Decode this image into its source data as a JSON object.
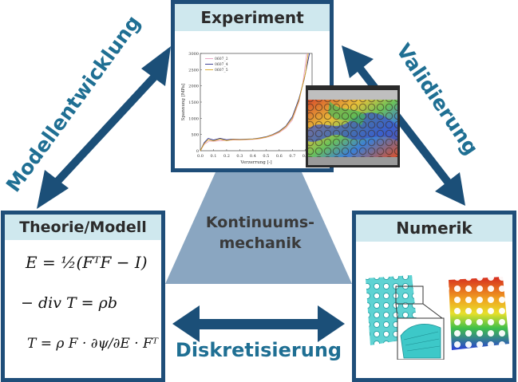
{
  "panels": {
    "experiment": {
      "title": "Experiment"
    },
    "theory": {
      "title": "Theorie/Modell"
    },
    "numerics": {
      "title": "Numerik"
    }
  },
  "center": {
    "line1": "Kontinuums-",
    "line2": "mechanik"
  },
  "arrows": {
    "left": "Modellentwicklung",
    "right": "Validierung",
    "bottom": "Diskretisierung"
  },
  "equations": {
    "eq1": "E = ½(FᵀF − I)",
    "eq2": "− div T = ρb",
    "eq3": "T = ρ F · ∂ψ/∂E · Fᵀ"
  },
  "colors": {
    "dark_blue": "#1f4e79",
    "arrow_blue": "#1b4f78",
    "header_bg": "#cfe8ee",
    "trapezoid": "#8aa6c1",
    "label_blue": "#1f6f93"
  },
  "chart_data": {
    "type": "line",
    "xlabel": "Verzerrung [-]",
    "ylabel": "Spannung [MPa]",
    "x_ticks": [
      "0.0",
      "0.1",
      "0.2",
      "0.3",
      "0.4",
      "0.5",
      "0.6",
      "0.7",
      "0.8"
    ],
    "y_ticks": [
      "0",
      "500",
      "1000",
      "1500",
      "2000",
      "2500",
      "3000"
    ],
    "xlim": [
      0,
      0.85
    ],
    "ylim": [
      0,
      3000
    ],
    "series": [
      {
        "name": "0607_2",
        "color": "#e8a0c0",
        "x": [
          0,
          0.03,
          0.07,
          0.1,
          0.15,
          0.2,
          0.25,
          0.3,
          0.35,
          0.4,
          0.45,
          0.5,
          0.55,
          0.6,
          0.65,
          0.7,
          0.75,
          0.78,
          0.8,
          0.81
        ],
        "y": [
          0,
          200,
          300,
          290,
          310,
          320,
          330,
          330,
          340,
          350,
          370,
          410,
          470,
          560,
          700,
          950,
          1500,
          2100,
          2700,
          3000
        ]
      },
      {
        "name": "0607_4",
        "color": "#2b2f8a",
        "x": [
          0,
          0.03,
          0.06,
          0.1,
          0.15,
          0.2,
          0.25,
          0.3,
          0.35,
          0.4,
          0.45,
          0.5,
          0.55,
          0.6,
          0.65,
          0.7,
          0.75,
          0.79,
          0.82,
          0.83
        ],
        "y": [
          0,
          250,
          380,
          330,
          380,
          340,
          360,
          350,
          360,
          365,
          390,
          430,
          500,
          600,
          760,
          1050,
          1600,
          2200,
          2800,
          3000
        ]
      },
      {
        "name": "0607_5",
        "color": "#d9a520",
        "x": [
          0,
          0.03,
          0.06,
          0.1,
          0.15,
          0.2,
          0.25,
          0.3,
          0.35,
          0.4,
          0.45,
          0.5,
          0.55,
          0.6,
          0.65,
          0.7,
          0.75,
          0.8,
          0.82
        ],
        "y": [
          0,
          220,
          340,
          300,
          360,
          310,
          350,
          340,
          350,
          360,
          380,
          420,
          490,
          580,
          740,
          1000,
          1550,
          2400,
          3000
        ]
      }
    ]
  }
}
